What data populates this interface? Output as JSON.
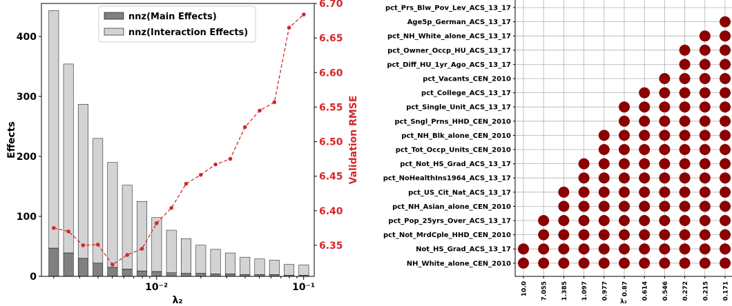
{
  "chart_data": [
    {
      "type": "bar",
      "xscale": "log",
      "xlabel": "λ₂",
      "ylabel": "Effects",
      "y2label": "Validation RMSE",
      "xlim": [
        0.00165,
        0.118
      ],
      "ylim": [
        0,
        455
      ],
      "y2lim": [
        6.305,
        6.7
      ],
      "grid": false,
      "legend_location": "top-center",
      "x_tick_labels": [
        {
          "value": 0.01,
          "label": "10⁻²"
        },
        {
          "value": 0.1,
          "label": "10⁻¹"
        }
      ],
      "y_ticks": [
        0,
        100,
        200,
        300,
        400
      ],
      "y2_ticks": [
        6.35,
        6.4,
        6.45,
        6.5,
        6.55,
        6.6,
        6.65,
        6.7
      ],
      "x": [
        0.002,
        0.00252,
        0.00317,
        0.00399,
        0.00502,
        0.00632,
        0.00796,
        0.01002,
        0.01262,
        0.01588,
        0.02,
        0.02518,
        0.0317,
        0.03991,
        0.05024,
        0.06325,
        0.07963,
        0.10025
      ],
      "series": [
        {
          "name": "nnz(Main Effects)",
          "kind": "bar",
          "color": "#808080",
          "values": [
            47,
            39,
            30,
            22,
            15,
            12,
            9,
            8,
            6,
            5,
            5,
            4,
            4,
            3,
            3,
            3,
            2,
            2
          ]
        },
        {
          "name": "nnz(Interaction Effects)",
          "kind": "bar",
          "color": "#d3d3d3",
          "values": [
            396,
            315,
            257,
            208,
            175,
            140,
            116,
            90,
            71,
            58,
            47,
            41,
            35,
            29,
            26,
            24,
            18,
            17
          ]
        },
        {
          "kind": "line",
          "color": "#d62728",
          "axis": "right",
          "values": [
            6.375,
            6.37,
            6.35,
            6.351,
            6.322,
            6.336,
            6.345,
            6.382,
            6.404,
            6.439,
            6.452,
            6.467,
            6.475,
            6.521,
            6.545,
            6.557,
            6.665,
            6.684
          ]
        }
      ],
      "colors": {
        "rmse": "#d62728",
        "main": "#808080",
        "interaction": "#d3d3d3"
      }
    },
    {
      "type": "scatter",
      "xlabel": "λ₂",
      "x_tick_labels": [
        "10.0",
        "7.055",
        "1.385",
        "1.097",
        "0.977",
        "0.87",
        "0.614",
        "0.546",
        "0.272",
        "0.215",
        "0.171"
      ],
      "features": [
        {
          "name": "pct_Prs_Blw_Pov_Lev_ACS_13_17",
          "first_col": 11
        },
        {
          "name": "Age5p_German_ACS_13_17",
          "first_col": 10
        },
        {
          "name": "pct_NH_White_alone_ACS_13_17",
          "first_col": 9
        },
        {
          "name": "pct_Owner_Occp_HU_ACS_13_17",
          "first_col": 8
        },
        {
          "name": "pct_Diff_HU_1yr_Ago_ACS_13_17",
          "first_col": 8
        },
        {
          "name": "pct_Vacants_CEN_2010",
          "first_col": 7
        },
        {
          "name": "pct_College_ACS_13_17",
          "first_col": 6
        },
        {
          "name": "pct_Single_Unit_ACS_13_17",
          "first_col": 5
        },
        {
          "name": "pct_Sngl_Prns_HHD_CEN_2010",
          "first_col": 5
        },
        {
          "name": "pct_NH_Blk_alone_CEN_2010",
          "first_col": 4
        },
        {
          "name": "pct_Tot_Occp_Units_CEN_2010",
          "first_col": 4
        },
        {
          "name": "pct_Not_HS_Grad_ACS_13_17",
          "first_col": 3
        },
        {
          "name": "pct_NoHealthIns1964_ACS_13_17",
          "first_col": 3
        },
        {
          "name": "pct_US_Cit_Nat_ACS_13_17",
          "first_col": 2
        },
        {
          "name": "pct_NH_Asian_alone_CEN_2010",
          "first_col": 2
        },
        {
          "name": "pct_Pop_25yrs_Over_ACS_13_17",
          "first_col": 1
        },
        {
          "name": "pct_Not_MrdCple_HHD_CEN_2010",
          "first_col": 1
        },
        {
          "name": "Not_HS_Grad_ACS_13_17",
          "first_col": 0
        },
        {
          "name": "NH_White_alone_CEN_2010",
          "first_col": 0
        }
      ],
      "grid": true,
      "colors": {
        "dot": "#8b0000",
        "grid": "#b0b0b0"
      }
    }
  ]
}
